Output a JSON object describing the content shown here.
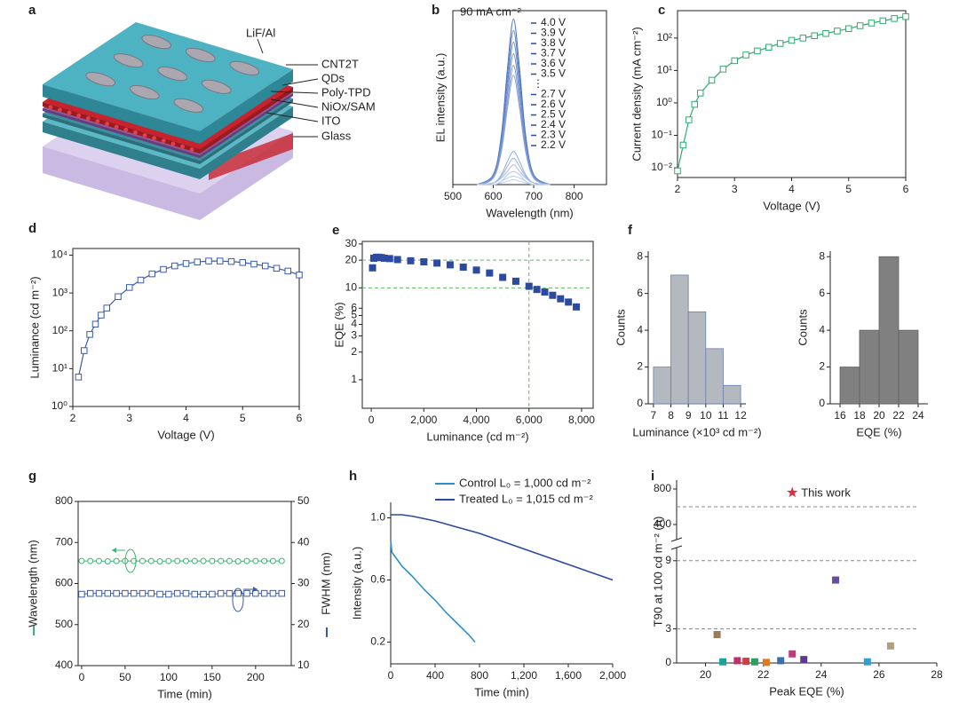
{
  "device": {
    "panel_label": "a",
    "labels": [
      "LiF/Al",
      "CNT2T",
      "QDs",
      "Poly-TPD",
      "NiOx/SAM",
      "ITO",
      "Glass"
    ]
  },
  "chart_data": [
    {
      "type": "line",
      "panel_label": "b",
      "annotation": "90 mA cm⁻²",
      "x_label": "Wavelength (nm)",
      "y_label": "EL intensity (a.u.)",
      "xlim": [
        500,
        880
      ],
      "xticks": [
        500,
        600,
        700,
        800
      ],
      "ylim": [
        0,
        1.05
      ],
      "smooth": true,
      "marker": "none",
      "legend_ellipsis": "⋮",
      "x": [
        560,
        600,
        620,
        635,
        650,
        665,
        680,
        700,
        740
      ],
      "series": [
        {
          "name": "4.0 V",
          "color": "#4f74bd",
          "values": [
            0,
            0.06,
            0.3,
            0.7,
            1,
            0.7,
            0.3,
            0.06,
            0
          ]
        },
        {
          "name": "3.9 V",
          "color": "#5a7dc2",
          "values": [
            0,
            0.06,
            0.28,
            0.65,
            0.93,
            0.65,
            0.28,
            0.06,
            0
          ]
        },
        {
          "name": "3.8 V",
          "color": "#6587c8",
          "values": [
            0,
            0.05,
            0.26,
            0.6,
            0.86,
            0.6,
            0.26,
            0.05,
            0
          ]
        },
        {
          "name": "3.7 V",
          "color": "#7090cd",
          "values": [
            0,
            0.05,
            0.24,
            0.55,
            0.79,
            0.55,
            0.24,
            0.05,
            0
          ]
        },
        {
          "name": "3.6 V",
          "color": "#7b99d2",
          "values": [
            0,
            0.04,
            0.22,
            0.5,
            0.72,
            0.5,
            0.22,
            0.04,
            0
          ]
        },
        {
          "name": "3.5 V",
          "color": "#86a2d7",
          "values": [
            0,
            0.04,
            0.2,
            0.46,
            0.66,
            0.46,
            0.2,
            0.04,
            0
          ]
        },
        {
          "name": "2.7 V",
          "color": "#91abdc",
          "values": [
            0,
            0.01,
            0.06,
            0.14,
            0.2,
            0.14,
            0.06,
            0.01,
            0
          ]
        },
        {
          "name": "2.6 V",
          "color": "#9cb4e0",
          "values": [
            0,
            0.01,
            0.05,
            0.11,
            0.16,
            0.11,
            0.05,
            0.01,
            0
          ]
        },
        {
          "name": "2.5 V",
          "color": "#a6bce4",
          "values": [
            0,
            0.01,
            0.04,
            0.08,
            0.12,
            0.08,
            0.04,
            0.01,
            0
          ]
        },
        {
          "name": "2.4 V",
          "color": "#b0c4e8",
          "values": [
            0,
            0,
            0.02,
            0.06,
            0.08,
            0.06,
            0.02,
            0,
            0
          ]
        },
        {
          "name": "2.3 V",
          "color": "#bacbeb",
          "values": [
            0,
            0,
            0.02,
            0.04,
            0.05,
            0.04,
            0.02,
            0,
            0
          ]
        },
        {
          "name": "2.2 V",
          "color": "#c4d3ee",
          "values": [
            0,
            0,
            0.01,
            0.02,
            0.03,
            0.02,
            0.01,
            0,
            0
          ]
        }
      ]
    },
    {
      "type": "line",
      "panel_label": "c",
      "x_label": "Voltage (V)",
      "y_label": "Current density (mA cm⁻²)",
      "marker": "open-square",
      "color": "#2eaa6e",
      "xlim": [
        2,
        6
      ],
      "xticks": [
        2,
        3,
        4,
        5,
        6
      ],
      "ylog": true,
      "ylim": [
        0.005,
        700
      ],
      "yticks": [
        {
          "value": 0.01,
          "label": "10⁻²"
        },
        {
          "value": 0.1,
          "label": "10⁻¹"
        },
        {
          "value": 1,
          "label": "10⁰"
        },
        {
          "value": 10,
          "label": "10¹"
        },
        {
          "value": 100,
          "label": "10²"
        }
      ],
      "x": [
        2.0,
        2.1,
        2.2,
        2.3,
        2.4,
        2.6,
        2.8,
        3.0,
        3.2,
        3.4,
        3.6,
        3.8,
        4.0,
        4.2,
        4.4,
        4.6,
        4.8,
        5.0,
        5.2,
        5.4,
        5.6,
        5.8,
        6.0
      ],
      "values": [
        0.008,
        0.05,
        0.3,
        0.9,
        2,
        5,
        11,
        20,
        30,
        40,
        52,
        68,
        85,
        100,
        118,
        138,
        165,
        195,
        240,
        290,
        340,
        400,
        460
      ]
    },
    {
      "type": "line",
      "panel_label": "d",
      "x_label": "Voltage (V)",
      "y_label": "Luminance (cd m⁻²)",
      "marker": "open-square",
      "color": "#3a5ba9",
      "xlim": [
        2,
        6
      ],
      "xticks": [
        2,
        3,
        4,
        5,
        6
      ],
      "ylog": true,
      "ylim": [
        1,
        15000
      ],
      "yticks": [
        {
          "value": 1,
          "label": "10⁰"
        },
        {
          "value": 10,
          "label": "10¹"
        },
        {
          "value": 100,
          "label": "10²"
        },
        {
          "value": 1000,
          "label": "10³"
        },
        {
          "value": 10000,
          "label": "10⁴"
        }
      ],
      "x": [
        2.1,
        2.2,
        2.3,
        2.4,
        2.5,
        2.6,
        2.8,
        3.0,
        3.2,
        3.4,
        3.6,
        3.8,
        4.0,
        4.2,
        4.4,
        4.6,
        4.8,
        5.0,
        5.2,
        5.4,
        5.6,
        5.8,
        6.0
      ],
      "values": [
        6,
        30,
        80,
        150,
        260,
        400,
        800,
        1400,
        2200,
        3200,
        4200,
        5200,
        6000,
        6600,
        7000,
        7000,
        6800,
        6400,
        5800,
        5200,
        4500,
        3800,
        3000
      ]
    },
    {
      "type": "scatter",
      "panel_label": "e",
      "x_label": "Luminance (cd m⁻²)",
      "y_label": "EQE (%)",
      "marker": "filled-square",
      "color": "#2c4a9e",
      "xlim": [
        -340,
        8440
      ],
      "xticks": [
        0,
        {
          "value": 2000,
          "label": "2,000"
        },
        {
          "value": 4000,
          "label": "4,000"
        },
        {
          "value": 6000,
          "label": "6,000"
        },
        {
          "value": 8000,
          "label": "8,000"
        }
      ],
      "ylog": true,
      "ylim": [
        0.49,
        32
      ],
      "yticks": [
        30,
        20,
        10,
        6,
        5,
        4,
        3,
        2,
        1
      ],
      "hlines": [
        20,
        10
      ],
      "vlines": [
        6000
      ],
      "ref_color": "#5cbf5c",
      "x": [
        50,
        100,
        200,
        300,
        400,
        500,
        700,
        1000,
        1500,
        2000,
        2500,
        3000,
        3500,
        4000,
        4500,
        5000,
        5500,
        6000,
        6300,
        6600,
        6900,
        7200,
        7500,
        7800
      ],
      "values": [
        16.5,
        21,
        21.5,
        21.5,
        21.3,
        21,
        20.8,
        20.3,
        19.7,
        19.2,
        18.6,
        17.8,
        16.8,
        15.6,
        14.5,
        13,
        11.8,
        10.4,
        9.6,
        9,
        8.3,
        7.6,
        7,
        6.2
      ]
    },
    {
      "type": "histogram",
      "panel_label": "f",
      "x_label": "Luminance (×10³ cd m⁻²)",
      "y_label": "Counts",
      "color": "#b4b9c0",
      "edge_color": "#6b7fb0",
      "xlim": [
        6.7,
        12.3
      ],
      "xticks": [
        7,
        8,
        9,
        10,
        11,
        12
      ],
      "ylim": [
        0,
        8.3
      ],
      "yticks": [
        0,
        2,
        4,
        6,
        8
      ],
      "bins": [
        7,
        8,
        9,
        10,
        11,
        12
      ],
      "values": [
        2,
        7,
        5,
        3,
        1
      ]
    },
    {
      "type": "histogram",
      "x_label": "EQE (%)",
      "y_label": "Counts",
      "color": "#808080",
      "edge_color": "#606060",
      "xlim": [
        15,
        25
      ],
      "xticks": [
        16,
        18,
        20,
        22,
        24
      ],
      "ylim": [
        0,
        8.3
      ],
      "yticks": [
        0,
        2,
        4,
        6,
        8
      ],
      "bins": [
        16,
        18,
        20,
        22,
        24
      ],
      "values": [
        2,
        4,
        8,
        4
      ]
    },
    {
      "type": "line",
      "panel_label": "g",
      "x_label": "Time (min)",
      "y_label": "Wavelength (nm)",
      "y2_label": "FWHM (nm)",
      "xlim": [
        -4,
        241
      ],
      "xticks": [
        0,
        50,
        100,
        150,
        200
      ],
      "ylim": [
        400,
        800
      ],
      "yticks": [
        400,
        500,
        600,
        700,
        800
      ],
      "y2lim": [
        10,
        50
      ],
      "y2ticks": [
        10,
        20,
        30,
        40,
        50
      ],
      "x": [
        0,
        10,
        20,
        30,
        40,
        50,
        60,
        70,
        80,
        90,
        100,
        110,
        120,
        130,
        140,
        150,
        160,
        170,
        180,
        190,
        200,
        210,
        220,
        230
      ],
      "series": [
        {
          "color": "#3cb371",
          "marker": "open-circle",
          "axis": "y",
          "values": [
            655,
            655,
            655,
            654,
            655,
            655,
            655,
            655,
            655,
            654,
            655,
            655,
            655,
            655,
            655,
            655,
            655,
            655,
            654,
            655,
            655,
            655,
            655,
            655
          ]
        },
        {
          "color": "#3a5ba9",
          "marker": "open-square",
          "axis": "y2",
          "values": [
            27.4,
            27.6,
            27.6,
            27.6,
            27.6,
            27.6,
            27.6,
            27.6,
            27.6,
            27.4,
            27.4,
            27.6,
            27.6,
            27.4,
            27.4,
            27.4,
            27.6,
            27.6,
            27.6,
            27.6,
            27.6,
            27.6,
            27.6,
            27.6
          ]
        }
      ]
    },
    {
      "type": "line",
      "panel_label": "h",
      "x_label": "Time (min)",
      "y_label": "Intensity (a.u.)",
      "marker": "none",
      "xlim": [
        0,
        2000
      ],
      "xticks": [
        0,
        400,
        800,
        {
          "value": 1200,
          "label": "1,200"
        },
        {
          "value": 1600,
          "label": "1,600"
        },
        {
          "value": 2000,
          "label": "2,000"
        }
      ],
      "ylim": [
        0.06,
        1.1
      ],
      "yticks": [
        0.2,
        0.6,
        {
          "value": 1,
          "label": "1.0"
        }
      ],
      "series": [
        {
          "name": "Control L₀ = 1,000 cd m⁻²",
          "color": "#2a8fd0",
          "x": [
            0,
            10,
            50,
            100,
            200,
            300,
            400,
            500,
            600,
            700,
            760
          ],
          "values": [
            0.85,
            0.78,
            0.74,
            0.69,
            0.62,
            0.54,
            0.47,
            0.39,
            0.32,
            0.25,
            0.2
          ]
        },
        {
          "name": "Treated L₀ = 1,015 cd m⁻²",
          "color": "#2b4aa0",
          "x": [
            0,
            100,
            200,
            400,
            600,
            800,
            1000,
            1200,
            1400,
            1600,
            1800,
            2000
          ],
          "values": [
            1.02,
            1.02,
            1.01,
            0.98,
            0.94,
            0.9,
            0.85,
            0.8,
            0.75,
            0.7,
            0.65,
            0.6
          ]
        }
      ]
    },
    {
      "type": "scatter",
      "panel_label": "i",
      "x_label": "Peak EQE (%)",
      "y_label": "T90 at 100 cd m⁻² (h)",
      "marker": "filled-square",
      "xlim": [
        19,
        28
      ],
      "xticks": [
        20,
        22,
        24,
        26,
        28
      ],
      "ylim": [
        0,
        10
      ],
      "yticks": [
        0,
        3,
        9
      ],
      "upper_ylim": [
        250,
        900
      ],
      "upper_yticks": [
        400,
        800
      ],
      "hlines": [
        3,
        9,
        600
      ],
      "ref_color": "#888888",
      "x": [
        20.4,
        20.6,
        21.1,
        21.4,
        21.7,
        22.1,
        22.6,
        23.0,
        23.4,
        24.5,
        25.6,
        26.4
      ],
      "values": [
        2.5,
        0.1,
        0.2,
        0.15,
        0.1,
        0.05,
        0.2,
        0.8,
        0.3,
        7.3,
        0.1,
        1.5
      ],
      "colors": [
        "#9c7a5a",
        "#1aa39a",
        "#c0306a",
        "#d04040",
        "#2e9e5e",
        "#e07a20",
        "#3a6fb0",
        "#c03a7a",
        "#5a3a8a",
        "#6a4aa0",
        "#30a0d0",
        "#b0a080"
      ],
      "highlight": {
        "label": "This work",
        "x": 23.0,
        "y": 760,
        "color": "#e03040"
      }
    }
  ]
}
